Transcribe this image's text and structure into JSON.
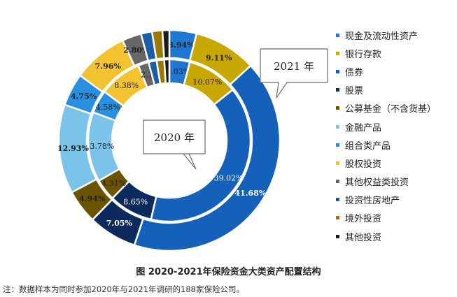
{
  "chart_data": {
    "type": "donut",
    "categories": [
      "现金及流动性资产",
      "银行存款",
      "债券",
      "股票",
      "公募基金（不含货基）",
      "金融产品",
      "组合类产品",
      "股权投资",
      "其他权益类投资",
      "投资性房地产",
      "境外投资",
      "其他投资"
    ],
    "colors": [
      "#1f77d0",
      "#c8a800",
      "#1560b8",
      "#0d2a5c",
      "#6b5300",
      "#7cc3ea",
      "#2b8fe0",
      "#f2c230",
      "#666666",
      "#1c5ea5",
      "#9a7a00",
      "#1a1a1a"
    ],
    "series": [
      {
        "name": "2020 年",
        "ring": "inner",
        "values": [
          4.03,
          10.07,
          39.02,
          8.65,
          4.31,
          13.78,
          4.58,
          8.38,
          2.1,
          1.6,
          1.5,
          1.0
        ],
        "labels": [
          "4.03%",
          "10.07%",
          "39.02%",
          "8.65%",
          "4.31%",
          "13.78%",
          "4.58%",
          "8.38%",
          "2.1",
          "",
          "",
          ""
        ]
      },
      {
        "name": "2021 年",
        "ring": "outer",
        "values": [
          3.94,
          9.11,
          41.68,
          7.05,
          4.94,
          12.93,
          4.75,
          7.96,
          2.8,
          1.6,
          1.5,
          1.0
        ],
        "labels": [
          "3.94%",
          "9.11%",
          "41.68%",
          "7.05%",
          "4.94%",
          "12.93%",
          "4.75%",
          "7.96%",
          "2.80%",
          "",
          "",
          ""
        ]
      }
    ],
    "callouts": {
      "inner": "2020 年",
      "outer": "2021 年"
    }
  },
  "caption": "图 2020-2021年保险资金大类资产配置结构",
  "note": "注：数据样本为同时参加2020年与2021年调研的188家保险公司。"
}
